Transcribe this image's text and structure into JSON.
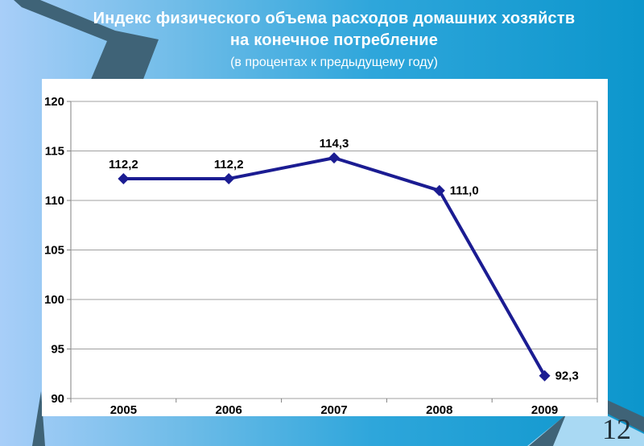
{
  "slide": {
    "title_line1": "Индекс физического объема расходов домашних хозяйств",
    "title_line2": "на конечное потребление",
    "title_line3": "(в процентах к предыдущему году)",
    "page_number": "12"
  },
  "theme": {
    "background_left": "#a8cef8",
    "background_right": "#0c96cc",
    "title_color": "#ffffff",
    "ornament_dark": "#3f6377",
    "ornament_light": "#a9d9f3",
    "panel_bg": "#ffffff",
    "series_color": "#1b1c92",
    "grid_color": "#a0a0a0",
    "axis_color": "#808080",
    "tick_label_color": "#000000",
    "page_number_color": "#223038"
  },
  "chart_data": {
    "type": "line",
    "title": "Индекс физического объема расходов домашних хозяйств на конечное потребление (в процентах к предыдущему году)",
    "categories": [
      "2005",
      "2006",
      "2007",
      "2008",
      "2009"
    ],
    "series": [
      {
        "name": "Индекс физического объема расходов домашних хозяйств на конечное потребление",
        "values": [
          112.2,
          112.2,
          114.3,
          111.0,
          92.3
        ],
        "point_labels": [
          "112,2",
          "112,2",
          "114,3",
          "111,0",
          "92,3"
        ]
      }
    ],
    "xlabel": "",
    "ylabel": "",
    "ylim": [
      90,
      120
    ],
    "yticks": [
      90,
      95,
      100,
      105,
      110,
      115,
      120
    ],
    "grid": true,
    "legend": false,
    "marker": "diamond",
    "label_placement": [
      "above",
      "above",
      "above",
      "right",
      "right"
    ]
  }
}
